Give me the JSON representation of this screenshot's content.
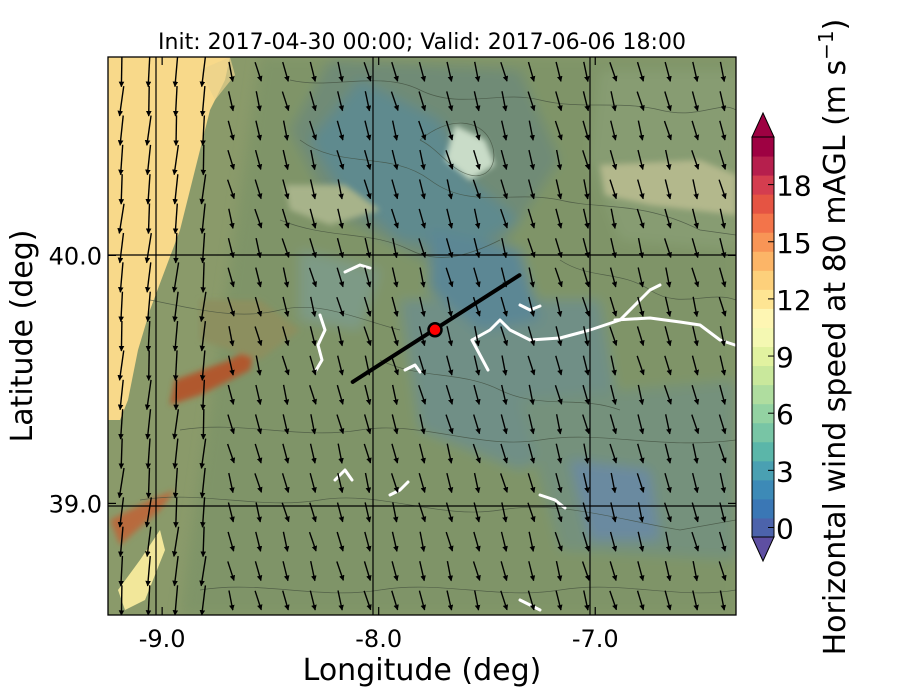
{
  "chart_data": {
    "type": "heatmap",
    "title": "Init: 2017-04-30 00:00; Valid: 2017-06-06 18:00",
    "xlabel": "Longitude (deg)",
    "ylabel": "Latitude (deg)",
    "xlim": [
      -9.25,
      -6.35
    ],
    "ylim": [
      38.55,
      40.8
    ],
    "x_ticks": [
      -9.0,
      -8.0,
      -7.0
    ],
    "x_tick_labels": [
      "-9.0",
      "-8.0",
      "-7.0"
    ],
    "y_ticks": [
      39.0,
      40.0
    ],
    "y_tick_labels": [
      "39.0",
      "40.0"
    ],
    "grid": true,
    "colorbar": {
      "label": "Horizontal wind speed at 80 mAGL (m s$^{-1}$)",
      "label_main": "Horizontal wind speed at 80 mAGL (m s",
      "label_exponent": "−1",
      "label_close": ")",
      "min": 0,
      "max": 20,
      "step": 1,
      "extend": "both",
      "ticks": [
        0,
        3,
        6,
        9,
        12,
        15,
        18
      ],
      "tick_labels": [
        "0",
        "3",
        "6",
        "9",
        "12",
        "15",
        "18"
      ],
      "colors": [
        "#5e4fa2",
        "#4c63ab",
        "#3a77b5",
        "#3d8ab7",
        "#4aa0b2",
        "#5bb6a9",
        "#78c5a5",
        "#93d2a2",
        "#afdd9f",
        "#c9e89c",
        "#e1f2a0",
        "#f4f8b2",
        "#fef6b3",
        "#fee593",
        "#fdd07b",
        "#fcb567",
        "#f89556",
        "#f3744a",
        "#e55443",
        "#d43d4f",
        "#b61f4d",
        "#9e0142"
      ],
      "position": "right"
    },
    "transect": {
      "start": [
        -8.12,
        39.49
      ],
      "end": [
        -7.35,
        39.92
      ]
    },
    "site_marker": {
      "lon": -7.74,
      "lat": 39.7,
      "fill": "#ff0000",
      "edge": "#000000"
    },
    "wind_vectors": {
      "direction": "predominantly from the north-northwest",
      "arrow_color": "#000000"
    },
    "fields": {
      "coastal_high_wind_zone": {
        "lon_range": [
          -9.25,
          -8.9
        ],
        "speed_range": [
          11,
          13
        ]
      },
      "ridge_high_wind_band": {
        "lon_range": [
          -9.0,
          -8.55
        ],
        "lat_range": [
          39.45,
          39.6
        ],
        "speed_range": [
          16,
          20
        ]
      },
      "upland_low_wind_zone": {
        "lon_range": [
          -8.2,
          -7.2
        ],
        "lat_range": [
          39.95,
          40.45
        ],
        "speed_range": [
          0,
          4
        ]
      },
      "background_speed_range": [
        4,
        8
      ]
    }
  }
}
